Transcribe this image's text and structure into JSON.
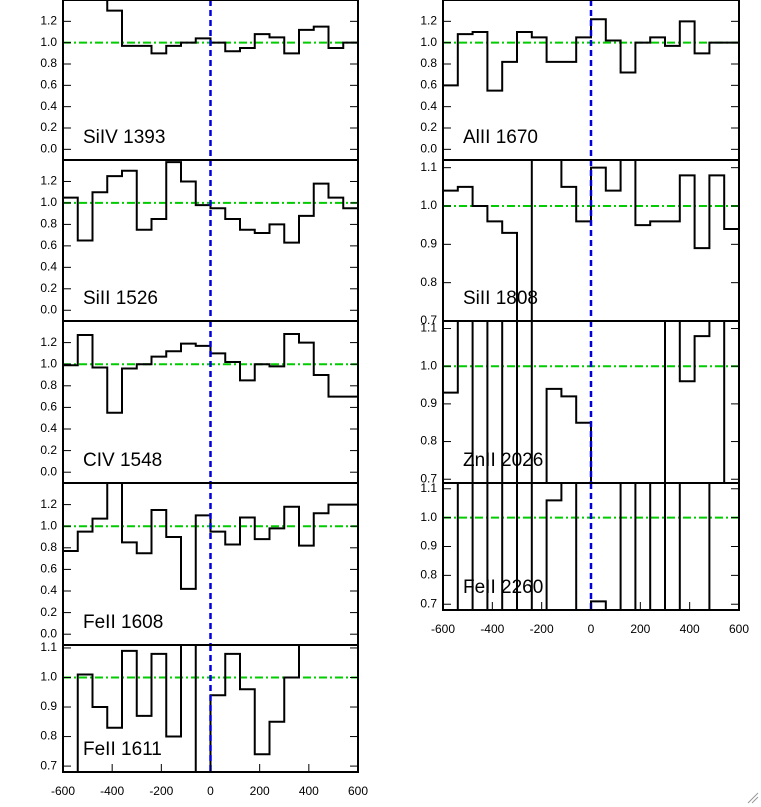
{
  "chart_data": [
    {
      "type": "line",
      "annotation": "SiIV 1393",
      "xlim": [
        -600,
        600
      ],
      "ylim": [
        -0.1,
        1.4
      ],
      "yticks": [
        {
          "value": 0,
          "label": "0.0"
        },
        0.2,
        0.4,
        0.6,
        0.8,
        {
          "value": 1,
          "label": "1.0"
        },
        1.2
      ],
      "hline": 1,
      "vline": 0,
      "color": "#000000",
      "x": [
        -570,
        -510,
        -450,
        -390,
        -330,
        -270,
        -210,
        -150,
        -90,
        -30,
        30,
        90,
        150,
        210,
        270,
        330,
        390,
        450,
        510,
        570
      ],
      "values": [
        1.45,
        1.45,
        1.45,
        1.3,
        0.97,
        0.97,
        0.9,
        0.97,
        1.0,
        1.04,
        1.0,
        0.92,
        0.95,
        1.08,
        1.05,
        0.9,
        1.12,
        1.15,
        0.95,
        1.0
      ]
    },
    {
      "type": "line",
      "annotation": "SiII 1526",
      "xlim": [
        -600,
        600
      ],
      "ylim": [
        -0.1,
        1.4
      ],
      "yticks": [
        {
          "value": 0,
          "label": "0.0"
        },
        0.2,
        0.4,
        0.6,
        0.8,
        {
          "value": 1,
          "label": "1.0"
        },
        1.2
      ],
      "hline": 1,
      "vline": 0,
      "color": "#000000",
      "x": [
        -570,
        -510,
        -450,
        -390,
        -330,
        -270,
        -210,
        -150,
        -90,
        -30,
        30,
        90,
        150,
        210,
        270,
        330,
        390,
        450,
        510,
        570
      ],
      "values": [
        1.05,
        0.65,
        1.1,
        1.25,
        1.3,
        0.75,
        0.85,
        1.38,
        1.2,
        0.98,
        0.95,
        0.85,
        0.75,
        0.72,
        0.8,
        0.63,
        0.88,
        1.18,
        1.05,
        0.95
      ]
    },
    {
      "type": "line",
      "annotation": "CIV 1548",
      "xlim": [
        -600,
        600
      ],
      "ylim": [
        -0.1,
        1.4
      ],
      "yticks": [
        {
          "value": 0,
          "label": "0.0"
        },
        0.2,
        0.4,
        0.6,
        0.8,
        {
          "value": 1,
          "label": "1.0"
        },
        1.2
      ],
      "hline": 1,
      "vline": 0,
      "color": "#000000",
      "x": [
        -570,
        -510,
        -450,
        -390,
        -330,
        -270,
        -210,
        -150,
        -90,
        -30,
        30,
        90,
        150,
        210,
        270,
        330,
        390,
        450,
        510,
        570
      ],
      "values": [
        0.99,
        1.27,
        0.97,
        0.55,
        0.96,
        1.0,
        1.07,
        1.12,
        1.19,
        1.17,
        1.1,
        1.02,
        0.85,
        1.0,
        0.98,
        1.28,
        1.2,
        0.9,
        0.7,
        0.7
      ]
    },
    {
      "type": "line",
      "annotation": "FeII 1608",
      "xlim": [
        -600,
        600
      ],
      "ylim": [
        -0.1,
        1.4
      ],
      "yticks": [
        {
          "value": 0,
          "label": "0.0"
        },
        0.2,
        0.4,
        0.6,
        0.8,
        {
          "value": 1,
          "label": "1.0"
        },
        1.2
      ],
      "hline": 1,
      "vline": 0,
      "color": "#000000",
      "x": [
        -570,
        -510,
        -450,
        -390,
        -330,
        -270,
        -210,
        -150,
        -90,
        -30,
        30,
        90,
        150,
        210,
        270,
        330,
        390,
        450,
        510,
        570
      ],
      "values": [
        0.77,
        0.95,
        1.07,
        1.45,
        0.85,
        0.75,
        1.15,
        0.9,
        0.42,
        1.1,
        0.95,
        0.83,
        1.08,
        0.88,
        0.98,
        1.18,
        0.82,
        1.12,
        1.2,
        1.2
      ]
    },
    {
      "type": "line",
      "annotation": "FeII 1611",
      "xlim": [
        -600,
        600
      ],
      "ylim": [
        0.68,
        1.11
      ],
      "xticks": [
        -600,
        -400,
        -200,
        0,
        200,
        400,
        600
      ],
      "yticks": [
        0.7,
        0.8,
        0.9,
        {
          "value": 1,
          "label": "1.0"
        },
        1.1
      ],
      "hline": 1,
      "vline": 0,
      "color": "#000000",
      "x": [
        -570,
        -510,
        -450,
        -390,
        -330,
        -270,
        -210,
        -150,
        -90,
        -30,
        30,
        90,
        150,
        210,
        270,
        330,
        390,
        450,
        510,
        570
      ],
      "values": [
        0.66,
        1.01,
        0.9,
        0.83,
        1.09,
        0.87,
        1.08,
        0.8,
        1.11,
        0.66,
        0.94,
        1.08,
        0.96,
        0.74,
        0.85,
        1.0,
        1.11,
        1.13,
        1.13,
        1.13
      ]
    },
    {
      "type": "line",
      "annotation": "AlII 1670",
      "xlim": [
        -600,
        600
      ],
      "ylim": [
        -0.1,
        1.4
      ],
      "yticks": [
        {
          "value": 0,
          "label": "0.0"
        },
        0.2,
        0.4,
        0.6,
        0.8,
        {
          "value": 1,
          "label": "1.0"
        },
        1.2
      ],
      "hline": 1,
      "vline": 0,
      "color": "#000000",
      "x": [
        -570,
        -510,
        -450,
        -390,
        -330,
        -270,
        -210,
        -150,
        -90,
        -30,
        30,
        90,
        150,
        210,
        270,
        330,
        390,
        450,
        510,
        570
      ],
      "values": [
        0.6,
        1.08,
        1.1,
        0.55,
        0.82,
        1.1,
        1.05,
        0.82,
        0.82,
        1.05,
        1.22,
        1.02,
        0.72,
        1.0,
        1.05,
        0.97,
        1.2,
        0.9,
        1.0,
        1.0
      ]
    },
    {
      "type": "line",
      "annotation": "SiII 1808",
      "xlim": [
        -600,
        600
      ],
      "ylim": [
        0.7,
        1.12
      ],
      "yticks": [
        0.7,
        0.8,
        0.9,
        {
          "value": 1,
          "label": "1.0"
        },
        1.1
      ],
      "hline": 1,
      "vline": 0,
      "color": "#000000",
      "x": [
        -570,
        -510,
        -450,
        -390,
        -330,
        -270,
        -210,
        -150,
        -90,
        -30,
        30,
        90,
        150,
        210,
        270,
        330,
        390,
        450,
        510,
        570
      ],
      "values": [
        1.04,
        1.05,
        1.0,
        0.96,
        0.93,
        0.68,
        1.13,
        1.13,
        1.05,
        0.96,
        1.1,
        1.04,
        1.12,
        0.95,
        0.96,
        0.96,
        1.08,
        0.89,
        1.08,
        0.94
      ]
    },
    {
      "type": "line",
      "annotation": "ZnII 2026",
      "xlim": [
        -600,
        600
      ],
      "ylim": [
        0.69,
        1.12
      ],
      "yticks": [
        0.7,
        0.8,
        0.9,
        {
          "value": 1,
          "label": "1.0"
        },
        1.1
      ],
      "hline": 1,
      "vline": 0,
      "color": "#000000",
      "x": [
        -570,
        -510,
        -450,
        -390,
        -330,
        -270,
        -210,
        -150,
        -90,
        -30,
        30,
        90,
        150,
        210,
        270,
        330,
        390,
        450,
        510,
        570
      ],
      "values": [
        0.93,
        1.13,
        0.67,
        1.13,
        0.67,
        1.13,
        0.67,
        0.94,
        0.92,
        0.85,
        0.67,
        0.67,
        0.67,
        0.67,
        0.67,
        1.13,
        0.96,
        1.08,
        1.13,
        0.67
      ]
    },
    {
      "type": "line",
      "annotation": "FeII 2260",
      "xlim": [
        -600,
        600
      ],
      "ylim": [
        0.68,
        1.12
      ],
      "xticks": [
        -600,
        -400,
        -200,
        0,
        200,
        400,
        600
      ],
      "yticks": [
        0.7,
        0.8,
        0.9,
        {
          "value": 1,
          "label": "1.0"
        },
        1.1
      ],
      "hline": 1,
      "vline": 0,
      "color": "#000000",
      "x": [
        -570,
        -510,
        -450,
        -390,
        -330,
        -270,
        -210,
        -150,
        -90,
        -30,
        30,
        90,
        150,
        210,
        270,
        330,
        390,
        450,
        510,
        570
      ],
      "values": [
        0.66,
        1.14,
        0.66,
        1.14,
        0.66,
        1.14,
        0.66,
        1.06,
        1.14,
        0.66,
        0.71,
        0.66,
        1.14,
        0.66,
        1.14,
        0.66,
        1.14,
        1.14,
        0.66,
        0.66
      ]
    }
  ]
}
